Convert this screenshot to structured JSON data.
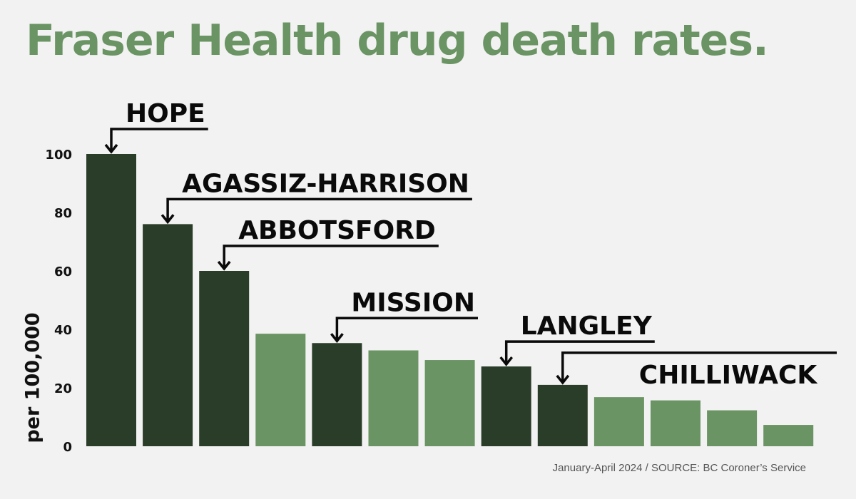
{
  "title": "Fraser Health drug death rates.",
  "source": "January-April 2024 / SOURCE: BC Coroner’s Service",
  "colors": {
    "highlight": "#2a3d28",
    "other": "#6a9463",
    "title": "#6a9463",
    "background": "#f2f2f2"
  },
  "chart_data": {
    "type": "bar",
    "ylabel": "per 100,000",
    "ylim": [
      0,
      100
    ],
    "yticks": [
      0,
      20,
      40,
      60,
      80,
      100
    ],
    "grid": false,
    "values": [
      100,
      76,
      60,
      38.5,
      35.3,
      32.8,
      29.5,
      27.3,
      21,
      16.8,
      15.7,
      12.3,
      7.3
    ],
    "highlight": [
      true,
      true,
      true,
      false,
      true,
      false,
      false,
      true,
      true,
      false,
      false,
      false,
      false
    ],
    "annotations": [
      {
        "label": "HOPE",
        "bar": 0
      },
      {
        "label": "AGASSIZ-HARRISON",
        "bar": 1
      },
      {
        "label": "ABBOTSFORD",
        "bar": 2
      },
      {
        "label": "MISSION",
        "bar": 4
      },
      {
        "label": "LANGLEY",
        "bar": 7
      },
      {
        "label": "CHILLIWACK",
        "bar": 8
      }
    ]
  }
}
